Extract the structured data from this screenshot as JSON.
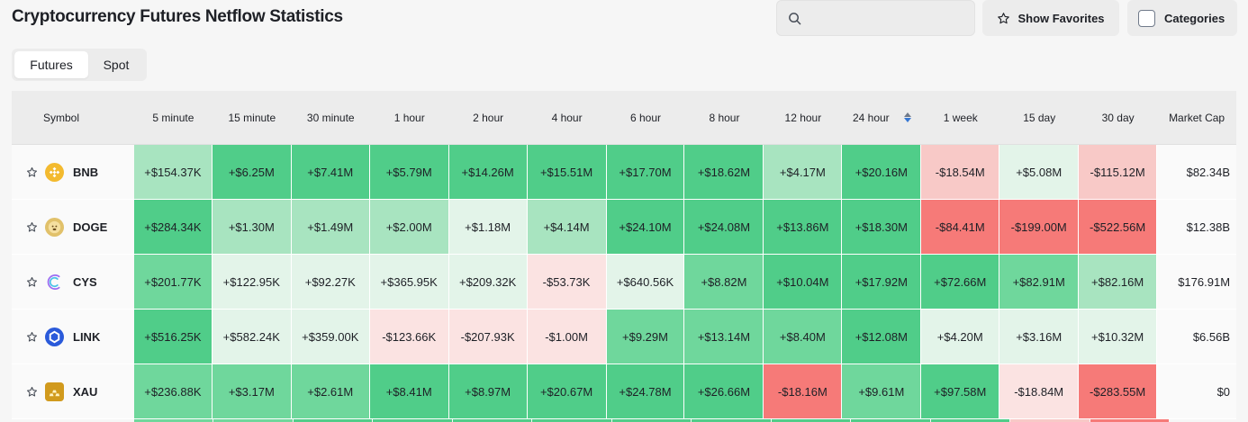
{
  "page": {
    "title": "Cryptocurrency Futures Netflow Statistics"
  },
  "search": {
    "placeholder": "",
    "icon": "search-icon"
  },
  "favorites_button": {
    "label": "Show Favorites",
    "icon": "star-icon"
  },
  "categories_button": {
    "label": "Categories"
  },
  "tabs": [
    {
      "label": "Futures",
      "active": true
    },
    {
      "label": "Spot",
      "active": false
    }
  ],
  "colors": {
    "green_strong": "#50cd89",
    "green_medium": "#6fd79c",
    "green_light": "#a8e4c0",
    "green_faint": "#e3f4e9",
    "red_strong": "#f67a78",
    "red_light": "#f8c9c7",
    "red_faint": "#fbe3e2",
    "sort_active": "#3577d4"
  },
  "table": {
    "headers": [
      "Symbol",
      "5 minute",
      "15 minute",
      "30 minute",
      "1 hour",
      "2 hour",
      "4 hour",
      "6 hour",
      "8 hour",
      "12 hour",
      "24 hour",
      "1 week",
      "15 day",
      "30 day",
      "Market Cap"
    ],
    "rows": [
      {
        "symbol": "BNB",
        "icon": "bnb-icon",
        "values": [
          "+$154.37K",
          "+$6.25M",
          "+$7.41M",
          "+$5.79M",
          "+$14.26M",
          "+$15.51M",
          "+$17.70M",
          "+$18.62M",
          "+$4.17M",
          "+$20.16M",
          "-$18.54M",
          "+$5.08M",
          "-$115.12M"
        ],
        "market_cap": "$82.34B"
      },
      {
        "symbol": "DOGE",
        "icon": "doge-icon",
        "values": [
          "+$284.34K",
          "+$1.30M",
          "+$1.49M",
          "+$2.00M",
          "+$1.18M",
          "+$4.14M",
          "+$24.10M",
          "+$24.08M",
          "+$13.86M",
          "+$18.30M",
          "-$84.41M",
          "-$199.00M",
          "-$522.56M"
        ],
        "market_cap": "$12.38B"
      },
      {
        "symbol": "CYS",
        "icon": "cys-icon",
        "values": [
          "+$201.77K",
          "+$122.95K",
          "+$92.27K",
          "+$365.95K",
          "+$209.32K",
          "-$53.73K",
          "+$640.56K",
          "+$8.82M",
          "+$10.04M",
          "+$17.92M",
          "+$72.66M",
          "+$82.91M",
          "+$82.16M"
        ],
        "market_cap": "$176.91M"
      },
      {
        "symbol": "LINK",
        "icon": "link-icon",
        "values": [
          "+$516.25K",
          "+$582.24K",
          "+$359.00K",
          "-$123.66K",
          "-$207.93K",
          "-$1.00M",
          "+$9.29M",
          "+$13.14M",
          "+$8.40M",
          "+$12.08M",
          "+$4.20M",
          "+$3.16M",
          "+$10.32M"
        ],
        "market_cap": "$6.56B"
      },
      {
        "symbol": "XAU",
        "icon": "xau-icon",
        "values": [
          "+$236.88K",
          "+$3.17M",
          "+$2.61M",
          "+$8.41M",
          "+$8.97M",
          "+$20.67M",
          "+$24.78M",
          "+$26.66M",
          "-$18.16M",
          "+$9.61M",
          "+$97.58M",
          "-$18.84M",
          "-$283.55M"
        ],
        "market_cap": "$0"
      }
    ]
  }
}
